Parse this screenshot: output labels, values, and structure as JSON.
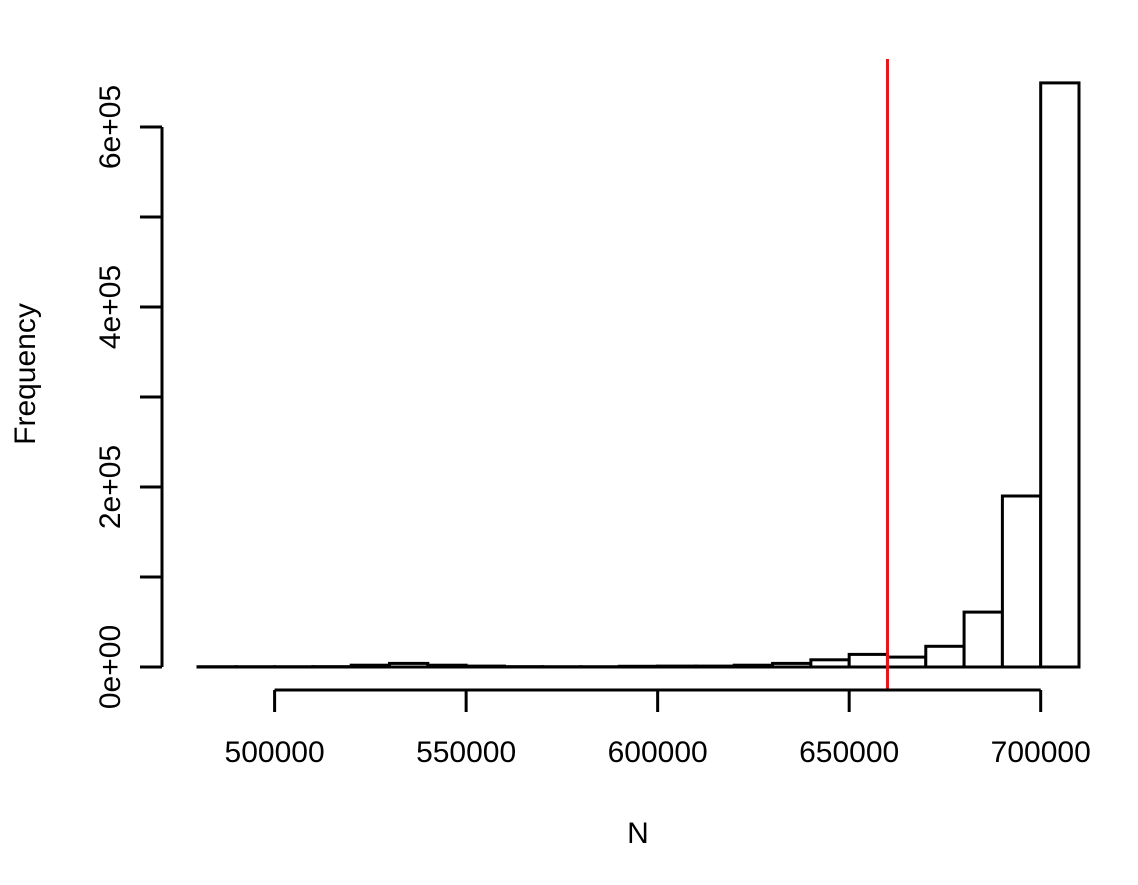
{
  "chart_data": {
    "type": "bar",
    "subtype": "histogram",
    "title": "",
    "xlabel": "N",
    "ylabel": "Frequency",
    "xlim": [
      480000,
      710000
    ],
    "ylim": [
      0,
      650000
    ],
    "x_ticks": [
      500000,
      550000,
      600000,
      650000,
      700000
    ],
    "x_tick_labels": [
      "500000",
      "550000",
      "600000",
      "650000",
      "700000"
    ],
    "y_ticks": [
      0,
      100000,
      200000,
      300000,
      400000,
      500000,
      600000
    ],
    "y_tick_labels": [
      "0e+00",
      "2e+05",
      "4e+05",
      "6e+05"
    ],
    "y_labeled_ticks": [
      0,
      200000,
      400000,
      600000
    ],
    "bin_width": 10000,
    "bins": [
      {
        "x0": 480000,
        "x1": 490000,
        "count": 300
      },
      {
        "x0": 490000,
        "x1": 500000,
        "count": 300
      },
      {
        "x0": 500000,
        "x1": 510000,
        "count": 300
      },
      {
        "x0": 510000,
        "x1": 520000,
        "count": 400
      },
      {
        "x0": 520000,
        "x1": 530000,
        "count": 2000
      },
      {
        "x0": 530000,
        "x1": 540000,
        "count": 4000
      },
      {
        "x0": 540000,
        "x1": 550000,
        "count": 2000
      },
      {
        "x0": 550000,
        "x1": 560000,
        "count": 1000
      },
      {
        "x0": 560000,
        "x1": 570000,
        "count": 400
      },
      {
        "x0": 570000,
        "x1": 580000,
        "count": 300
      },
      {
        "x0": 580000,
        "x1": 590000,
        "count": 300
      },
      {
        "x0": 590000,
        "x1": 600000,
        "count": 800
      },
      {
        "x0": 600000,
        "x1": 610000,
        "count": 1000
      },
      {
        "x0": 610000,
        "x1": 620000,
        "count": 1000
      },
      {
        "x0": 620000,
        "x1": 630000,
        "count": 2000
      },
      {
        "x0": 630000,
        "x1": 640000,
        "count": 4000
      },
      {
        "x0": 640000,
        "x1": 650000,
        "count": 8000
      },
      {
        "x0": 650000,
        "x1": 660000,
        "count": 14000
      },
      {
        "x0": 660000,
        "x1": 670000,
        "count": 11000
      },
      {
        "x0": 670000,
        "x1": 680000,
        "count": 23000
      },
      {
        "x0": 680000,
        "x1": 690000,
        "count": 61000
      },
      {
        "x0": 690000,
        "x1": 700000,
        "count": 190000
      },
      {
        "x0": 700000,
        "x1": 710000,
        "count": 649000
      }
    ],
    "reference_line": {
      "orientation": "vertical",
      "x": 660000,
      "color": "#e8141c"
    },
    "bar_fill": "#ffffff",
    "bar_stroke": "#000000",
    "grid": false,
    "legend": "none"
  }
}
